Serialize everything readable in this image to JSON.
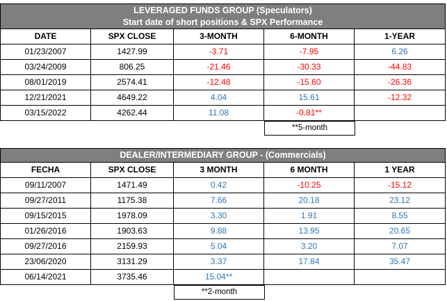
{
  "table1": {
    "title_line1": "LEVERAGED FUNDS GROUP     (Speculators)",
    "title_line2": "Start date of short positions & SPX Performance",
    "headers": [
      "DATE",
      "SPX CLOSE",
      "3-MONTH",
      "6-MONTH",
      "1-YEAR"
    ],
    "rows": [
      [
        "01/23/2007",
        "1427.99",
        "-3.71",
        "-7.95",
        "6.26"
      ],
      [
        "03/24/2009",
        "806.25",
        "-21.46",
        "-30.33",
        "-44.83"
      ],
      [
        "08/01/2019",
        "2574.41",
        "-12.48",
        "-15.60",
        "-26.36"
      ],
      [
        "12/21/2021",
        "4649.22",
        "4.04",
        "15.61",
        "-12.32"
      ],
      [
        "03/15/2022",
        "4262.44",
        "11.08",
        "-0.81**",
        ""
      ]
    ],
    "note": "**5-month"
  },
  "table2": {
    "title": "DEALER/INTERMEDIARY GROUP   -   (Commercials)",
    "headers": [
      "FECHA",
      "SPX CLOSE",
      "3 MONTH",
      "6 MONTH",
      "1 YEAR"
    ],
    "rows": [
      [
        "09/11/2007",
        "1471.49",
        "0.42",
        "-10.25",
        "-15.12"
      ],
      [
        "09/27/2011",
        "1175.38",
        "7.66",
        "20.18",
        "23.12"
      ],
      [
        "09/15/2015",
        "1978.09",
        "3.30",
        "1.91",
        "8.55"
      ],
      [
        "01/26/2016",
        "1903.63",
        "9.88",
        "13.95",
        "20.65"
      ],
      [
        "09/27/2016",
        "2159.93",
        "5.04",
        "3.20",
        "7.07"
      ],
      [
        "23/06/2020",
        "3131.29",
        "3.37",
        "17.84",
        "35.47"
      ],
      [
        "06/14/2021",
        "3735.46",
        "15.04**",
        "",
        ""
      ]
    ],
    "note": "**2-month"
  },
  "colors": {
    "negative": "#ff0000",
    "positive": "#2e75b6",
    "banner": "#7f7f7f"
  }
}
